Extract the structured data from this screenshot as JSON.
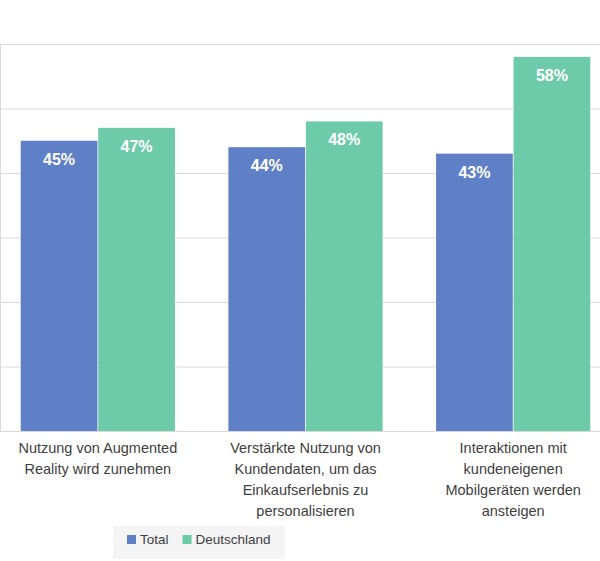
{
  "chart_data": {
    "type": "bar",
    "categories": [
      "Nutzung von Augmented\nReality wird zunehmen",
      "Verstärkte Nutzung von\nKundendaten, um das\nEinkaufserlebnis zu\npersonalisieren",
      "Interaktionen mit\nkundeneigenen\nMobilgeräten werden\nansteigen"
    ],
    "series": [
      {
        "name": "Total",
        "color": "#5f7fc6",
        "values": [
          45,
          44,
          43
        ],
        "value_labels": [
          "45%",
          "44%",
          "43%"
        ]
      },
      {
        "name": "Deutschland",
        "color": "#6dcbaa",
        "values": [
          47,
          48,
          58
        ],
        "value_labels": [
          "47%",
          "48%",
          "58%"
        ]
      }
    ],
    "ylim": [
      0,
      60
    ],
    "yticks": [
      0,
      10,
      20,
      30,
      40,
      50,
      60
    ],
    "grid": true,
    "tick_labels": "x",
    "data_labels": true,
    "legend": "bottom"
  }
}
